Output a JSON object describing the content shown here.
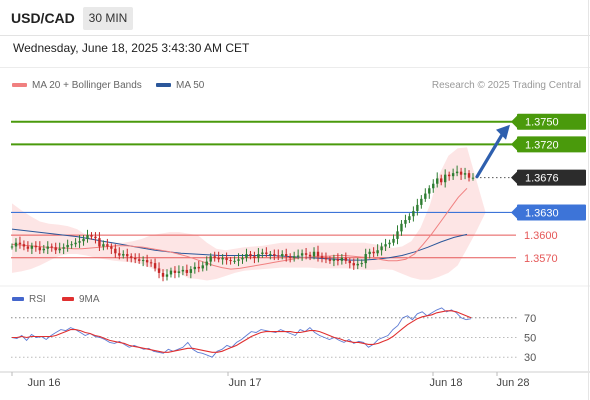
{
  "header": {
    "symbol": "USD/CAD",
    "timeframe": "30 MIN",
    "datetime": "Wednesday, June 18, 2025 3:43:30 AM CET"
  },
  "legend": {
    "ma20_label": "MA 20 + Bollinger Bands",
    "ma50_label": "MA 50",
    "credit": "Research © 2025 Trading Central"
  },
  "rsi_legend": {
    "rsi_label": "RSI",
    "ma_label": "9MA"
  },
  "colors": {
    "green_level": "#4a9a0c",
    "blue_level": "#3d74d8",
    "red_level": "#e55858",
    "ma20": "#f08080",
    "ma50": "#2b579a",
    "band_fill": "#fcdede",
    "candle_up": "#2e7d32",
    "candle_down": "#c62828",
    "last_price_bg": "#2c2c2c",
    "arrow": "#2e5fae",
    "rsi_line": "#4466cc",
    "rsi_ma": "#e03030"
  },
  "chart_data": {
    "type": "candlestick",
    "symbol": "USD/CAD",
    "timeframe": "30 MIN",
    "x_ticks": [
      "Jun 16",
      "Jun 17",
      "Jun 18",
      "Jun 28"
    ],
    "ylim": [
      1.3538,
      1.3792
    ],
    "last_price": "1.3676",
    "levels": [
      {
        "value": 1.375,
        "label": "1.3750",
        "kind": "resistance"
      },
      {
        "value": 1.372,
        "label": "1.3720",
        "kind": "resistance"
      },
      {
        "value": 1.363,
        "label": "1.3630",
        "kind": "pivot"
      },
      {
        "value": 1.36,
        "label": "1.3600",
        "kind": "support"
      },
      {
        "value": 1.357,
        "label": "1.3570",
        "kind": "support"
      }
    ],
    "close_series": [
      1.3585,
      1.359,
      1.3588,
      1.3585,
      1.3582,
      1.3586,
      1.3584,
      1.358,
      1.3582,
      1.3585,
      1.3584,
      1.358,
      1.3582,
      1.3584,
      1.3587,
      1.3588,
      1.359,
      1.3592,
      1.3595,
      1.36,
      1.3598,
      1.3596,
      1.3585,
      1.3588,
      1.3585,
      1.3582,
      1.3576,
      1.3573,
      1.3575,
      1.3572,
      1.357,
      1.3568,
      1.3566,
      1.3567,
      1.3564,
      1.3563,
      1.3556,
      1.355,
      1.3545,
      1.3548,
      1.3553,
      1.355,
      1.3552,
      1.3554,
      1.355,
      1.3555,
      1.3558,
      1.3556,
      1.356,
      1.3565,
      1.3572,
      1.357,
      1.3568,
      1.357,
      1.3567,
      1.3566,
      1.3566,
      1.3568,
      1.357,
      1.3575,
      1.3572,
      1.357,
      1.3575,
      1.3577,
      1.3575,
      1.3575,
      1.3573,
      1.3572,
      1.3575,
      1.3572,
      1.357,
      1.3572,
      1.3573,
      1.3576,
      1.3574,
      1.3572,
      1.3578,
      1.3572,
      1.357,
      1.3568,
      1.3566,
      1.3568,
      1.3566,
      1.357,
      1.3566,
      1.3563,
      1.356,
      1.3562,
      1.3563,
      1.3575,
      1.3578,
      1.3576,
      1.358,
      1.3585,
      1.3588,
      1.359,
      1.3595,
      1.3605,
      1.3615,
      1.362,
      1.3625,
      1.3632,
      1.364,
      1.3648,
      1.3655,
      1.3662,
      1.3668,
      1.3675,
      1.367,
      1.368,
      1.3678,
      1.3682,
      1.3684,
      1.368,
      1.3682,
      1.3676,
      1.3676
    ],
    "ma20_series": [
      1.3588,
      1.3587,
      1.3586,
      1.3585,
      1.3584,
      1.3583,
      1.3583,
      1.3582,
      1.3582,
      1.3583,
      1.3584,
      1.3585,
      1.3586,
      1.3586,
      1.3585,
      1.3584,
      1.3582,
      1.358,
      1.3578,
      1.3575,
      1.3572,
      1.3568,
      1.3564,
      1.356,
      1.3557,
      1.3555,
      1.3556,
      1.3558,
      1.356,
      1.3562,
      1.3564,
      1.3566,
      1.3568,
      1.357,
      1.3571,
      1.3572,
      1.3572,
      1.3573,
      1.3573,
      1.3572,
      1.3571,
      1.357,
      1.3568,
      1.3566,
      1.3566,
      1.3568,
      1.3575,
      1.3588,
      1.3602,
      1.3618,
      1.3634,
      1.365,
      1.3662
    ],
    "ma50_series": [
      1.3608,
      1.3606,
      1.3604,
      1.3602,
      1.36,
      1.3598,
      1.3595,
      1.3592,
      1.3589,
      1.3586,
      1.3583,
      1.358,
      1.3578,
      1.3576,
      1.3575,
      1.3574,
      1.3573,
      1.3573,
      1.3573,
      1.3573,
      1.3573,
      1.3572,
      1.3571,
      1.357,
      1.3569,
      1.3568,
      1.3567,
      1.3567,
      1.3568,
      1.357,
      1.3573,
      1.3578,
      1.3584,
      1.3591,
      1.3597,
      1.3601
    ],
    "bb_upper": [
      1.3642,
      1.3633,
      1.3625,
      1.3618,
      1.3615,
      1.3614,
      1.3612,
      1.3608,
      1.36,
      1.3595,
      1.3592,
      1.359,
      1.359,
      1.3592,
      1.3595,
      1.36,
      1.3602,
      1.3604,
      1.3604,
      1.3602,
      1.36,
      1.359,
      1.3582,
      1.358,
      1.3582,
      1.3584,
      1.3585,
      1.3586,
      1.3588,
      1.359,
      1.359,
      1.359,
      1.359,
      1.359,
      1.359,
      1.359,
      1.359,
      1.359,
      1.359,
      1.3588,
      1.3586,
      1.3583,
      1.3585,
      1.3592,
      1.361,
      1.364,
      1.368,
      1.3705,
      1.3715,
      1.3716
    ],
    "bb_lower": [
      1.355,
      1.3552,
      1.3555,
      1.356,
      1.3566,
      1.3572,
      1.3575,
      1.3575,
      1.3573,
      1.357,
      1.3568,
      1.3566,
      1.3565,
      1.3564,
      1.3562,
      1.3556,
      1.3552,
      1.3552,
      1.355,
      1.3543,
      1.3542,
      1.354,
      1.3542,
      1.3546,
      1.355,
      1.3553,
      1.3554,
      1.3555,
      1.3556,
      1.3557,
      1.3557,
      1.3557,
      1.3557,
      1.3556,
      1.3556,
      1.3556,
      1.3556,
      1.3555,
      1.3554,
      1.3554,
      1.3555,
      1.3554,
      1.3549,
      1.3544,
      1.3541,
      1.3541,
      1.3545,
      1.355,
      1.356,
      1.3582,
      1.3605,
      1.363
    ],
    "rsi": {
      "ticks": [
        30,
        50,
        70
      ],
      "ylim": [
        15,
        88
      ],
      "dotted_level": 70,
      "rsi_series": [
        50,
        49,
        52,
        47,
        53,
        50,
        51,
        48,
        52,
        55,
        58,
        57,
        60,
        58,
        55,
        52,
        54,
        51,
        50,
        48,
        45,
        44,
        46,
        43,
        40,
        42,
        40,
        38,
        39,
        36,
        35,
        34,
        38,
        36,
        38,
        40,
        45,
        38,
        35,
        34,
        32,
        30,
        36,
        38,
        42,
        40,
        45,
        48,
        52,
        56,
        55,
        58,
        57,
        56,
        55,
        58,
        56,
        54,
        52,
        58,
        56,
        60,
        55,
        52,
        50,
        48,
        50,
        47,
        45,
        48,
        44,
        46,
        45,
        40,
        43,
        48,
        50,
        52,
        58,
        62,
        70,
        72,
        68,
        74,
        76,
        72,
        75,
        78,
        80,
        76,
        78,
        75,
        70,
        68,
        69
      ],
      "ma_series": [
        50,
        50,
        51,
        50,
        51,
        51,
        51,
        51,
        51,
        52,
        54,
        56,
        58,
        58,
        57,
        55,
        54,
        52,
        51,
        49,
        47,
        46,
        45,
        44,
        42,
        41,
        40,
        39,
        38,
        37,
        36,
        35,
        35,
        36,
        37,
        38,
        39,
        39,
        38,
        37,
        36,
        35,
        35,
        36,
        38,
        40,
        42,
        45,
        48,
        51,
        53,
        55,
        56,
        56,
        56,
        56,
        56,
        56,
        55,
        55,
        56,
        57,
        57,
        56,
        54,
        52,
        50,
        49,
        47,
        46,
        45,
        45,
        44,
        43,
        43,
        44,
        46,
        48,
        51,
        55,
        59,
        63,
        66,
        69,
        71,
        72,
        73,
        75,
        76,
        77,
        77,
        76,
        74,
        72,
        70
      ]
    }
  }
}
